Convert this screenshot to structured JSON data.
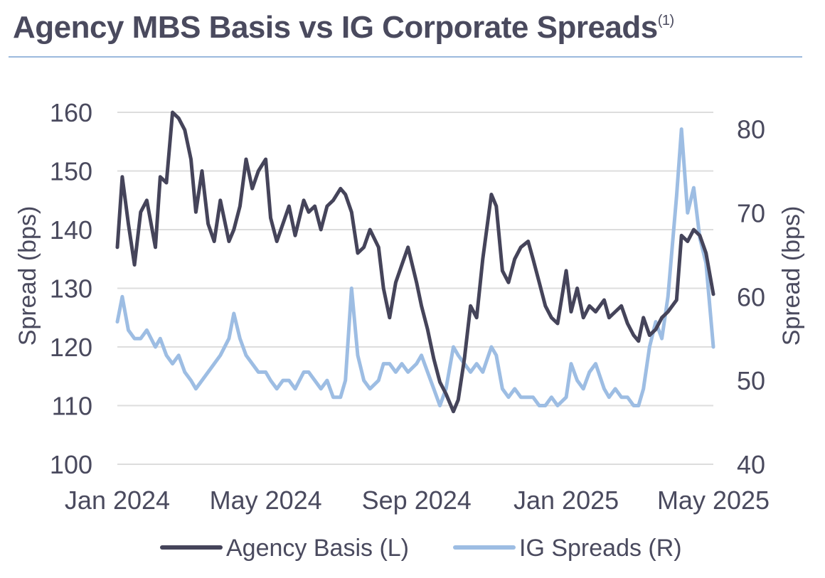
{
  "title": "Agency MBS Basis vs IG Corporate Spreads",
  "title_footnote": "(1)",
  "colors": {
    "basis": "#45445a",
    "ig": "#9dbde3",
    "grid": "#dddddd",
    "text": "#4a4a5e",
    "rule": "#9bb9dd"
  },
  "chart_data": {
    "type": "line",
    "x_axis": {
      "type": "date",
      "range": [
        "2024-01-01",
        "2025-05-01"
      ],
      "ticks": [
        "2024-01-01",
        "2024-05-01",
        "2024-09-01",
        "2025-01-01",
        "2025-05-01"
      ],
      "tick_labels": [
        "Jan 2024",
        "May 2024",
        "Sep 2024",
        "Jan 2025",
        "May 2025"
      ]
    },
    "y_left": {
      "label": "Spread (bps)",
      "range": [
        100,
        160
      ],
      "ticks": [
        100,
        110,
        120,
        130,
        140,
        150,
        160
      ]
    },
    "y_right": {
      "label": "Spread (bps)",
      "range": [
        40,
        82
      ],
      "ticks": [
        40,
        50,
        60,
        70,
        80
      ]
    },
    "grid": true,
    "legend_position": "bottom",
    "series": [
      {
        "name": "Agency Basis (L)",
        "axis": "left",
        "x": [
          "2024-01-01",
          "2024-01-05",
          "2024-01-10",
          "2024-01-15",
          "2024-01-20",
          "2024-01-25",
          "2024-02-01",
          "2024-02-05",
          "2024-02-10",
          "2024-02-15",
          "2024-02-20",
          "2024-02-25",
          "2024-03-01",
          "2024-03-05",
          "2024-03-10",
          "2024-03-15",
          "2024-03-20",
          "2024-03-25",
          "2024-04-01",
          "2024-04-05",
          "2024-04-10",
          "2024-04-15",
          "2024-04-20",
          "2024-04-25",
          "2024-05-01",
          "2024-05-05",
          "2024-05-10",
          "2024-05-15",
          "2024-05-20",
          "2024-05-25",
          "2024-06-01",
          "2024-06-05",
          "2024-06-10",
          "2024-06-15",
          "2024-06-20",
          "2024-06-25",
          "2024-07-01",
          "2024-07-05",
          "2024-07-10",
          "2024-07-15",
          "2024-07-20",
          "2024-07-25",
          "2024-08-01",
          "2024-08-05",
          "2024-08-10",
          "2024-08-15",
          "2024-08-20",
          "2024-08-25",
          "2024-09-01",
          "2024-09-05",
          "2024-09-10",
          "2024-09-15",
          "2024-09-20",
          "2024-09-25",
          "2024-10-01",
          "2024-10-05",
          "2024-10-10",
          "2024-10-15",
          "2024-10-20",
          "2024-10-25",
          "2024-11-01",
          "2024-11-05",
          "2024-11-10",
          "2024-11-15",
          "2024-11-20",
          "2024-11-25",
          "2024-12-01",
          "2024-12-05",
          "2024-12-10",
          "2024-12-15",
          "2024-12-20",
          "2024-12-25",
          "2025-01-01",
          "2025-01-05",
          "2025-01-10",
          "2025-01-15",
          "2025-01-20",
          "2025-01-25",
          "2025-02-01",
          "2025-02-05",
          "2025-02-10",
          "2025-02-15",
          "2025-02-20",
          "2025-02-25",
          "2025-03-01",
          "2025-03-05",
          "2025-03-10",
          "2025-03-15",
          "2025-03-20",
          "2025-03-25",
          "2025-04-01",
          "2025-04-05",
          "2025-04-10",
          "2025-04-15",
          "2025-04-20",
          "2025-04-25",
          "2025-05-01"
        ],
        "y": [
          137,
          149,
          141,
          134,
          143,
          145,
          137,
          149,
          148,
          160,
          159,
          157,
          152,
          143,
          150,
          141,
          138,
          145,
          138,
          140,
          144,
          152,
          147,
          150,
          152,
          142,
          138,
          141,
          144,
          139,
          145,
          143,
          144,
          140,
          144,
          145,
          147,
          146,
          143,
          136,
          137,
          140,
          137,
          130,
          125,
          131,
          134,
          137,
          131,
          127,
          123,
          118,
          114,
          112,
          109,
          111,
          118,
          127,
          125,
          135,
          146,
          144,
          133,
          131,
          135,
          137,
          138,
          135,
          131,
          127,
          125,
          124,
          133,
          126,
          130,
          125,
          127,
          126,
          128,
          125,
          126,
          127,
          124,
          122,
          121,
          125,
          122,
          123,
          125,
          126,
          128,
          139,
          138,
          140,
          139,
          136,
          129
        ],
        "values": [
          137,
          149,
          141,
          134,
          143,
          145,
          137,
          149,
          148,
          160,
          159,
          157,
          152,
          143,
          150,
          141,
          138,
          145,
          138,
          140,
          144,
          152,
          147,
          150,
          152,
          142,
          138,
          141,
          144,
          139,
          145,
          143,
          144,
          140,
          144,
          145,
          147,
          146,
          143,
          136,
          137,
          140,
          137,
          130,
          125,
          131,
          134,
          137,
          131,
          127,
          123,
          118,
          114,
          112,
          109,
          111,
          118,
          127,
          125,
          135,
          146,
          144,
          133,
          131,
          135,
          137,
          138,
          135,
          131,
          127,
          125,
          124,
          133,
          126,
          130,
          125,
          127,
          126,
          128,
          125,
          126,
          127,
          124,
          122,
          121,
          125,
          122,
          123,
          125,
          126,
          128,
          139,
          138,
          140,
          139,
          136,
          129
        ]
      },
      {
        "name": "IG Spreads (R)",
        "axis": "right",
        "x": [
          "2024-01-01",
          "2024-01-05",
          "2024-01-10",
          "2024-01-15",
          "2024-01-20",
          "2024-01-25",
          "2024-02-01",
          "2024-02-05",
          "2024-02-10",
          "2024-02-15",
          "2024-02-20",
          "2024-02-25",
          "2024-03-01",
          "2024-03-05",
          "2024-03-10",
          "2024-03-15",
          "2024-03-20",
          "2024-03-25",
          "2024-04-01",
          "2024-04-05",
          "2024-04-10",
          "2024-04-15",
          "2024-04-20",
          "2024-04-25",
          "2024-05-01",
          "2024-05-05",
          "2024-05-10",
          "2024-05-15",
          "2024-05-20",
          "2024-05-25",
          "2024-06-01",
          "2024-06-05",
          "2024-06-10",
          "2024-06-15",
          "2024-06-20",
          "2024-06-25",
          "2024-07-01",
          "2024-07-05",
          "2024-07-10",
          "2024-07-15",
          "2024-07-20",
          "2024-07-25",
          "2024-08-01",
          "2024-08-05",
          "2024-08-10",
          "2024-08-15",
          "2024-08-20",
          "2024-08-25",
          "2024-09-01",
          "2024-09-05",
          "2024-09-10",
          "2024-09-15",
          "2024-09-20",
          "2024-09-25",
          "2024-10-01",
          "2024-10-05",
          "2024-10-10",
          "2024-10-15",
          "2024-10-20",
          "2024-10-25",
          "2024-11-01",
          "2024-11-05",
          "2024-11-10",
          "2024-11-15",
          "2024-11-20",
          "2024-11-25",
          "2024-12-01",
          "2024-12-05",
          "2024-12-10",
          "2024-12-15",
          "2024-12-20",
          "2024-12-25",
          "2025-01-01",
          "2025-01-05",
          "2025-01-10",
          "2025-01-15",
          "2025-01-20",
          "2025-01-25",
          "2025-02-01",
          "2025-02-05",
          "2025-02-10",
          "2025-02-15",
          "2025-02-20",
          "2025-02-25",
          "2025-03-01",
          "2025-03-05",
          "2025-03-10",
          "2025-03-15",
          "2025-03-20",
          "2025-03-25",
          "2025-04-01",
          "2025-04-05",
          "2025-04-10",
          "2025-04-15",
          "2025-04-20",
          "2025-04-25",
          "2025-05-01"
        ],
        "y": [
          57,
          60,
          56,
          55,
          55,
          56,
          54,
          55,
          53,
          52,
          53,
          51,
          50,
          49,
          50,
          51,
          52,
          53,
          55,
          58,
          55,
          53,
          52,
          51,
          51,
          50,
          49,
          50,
          50,
          49,
          51,
          51,
          50,
          49,
          50,
          48,
          48,
          50,
          61,
          53,
          50,
          49,
          50,
          52,
          52,
          51,
          52,
          51,
          52,
          53,
          51,
          49,
          47,
          49,
          54,
          53,
          52,
          51,
          52,
          51,
          54,
          53,
          49,
          48,
          49,
          48,
          48,
          48,
          47,
          47,
          48,
          47,
          48,
          52,
          50,
          49,
          51,
          52,
          49,
          48,
          49,
          48,
          48,
          47,
          47,
          49,
          54,
          57,
          55,
          60,
          72,
          80,
          70,
          73,
          67,
          64,
          54
        ],
        "values": [
          57,
          60,
          56,
          55,
          55,
          56,
          54,
          55,
          53,
          52,
          53,
          51,
          50,
          49,
          50,
          51,
          52,
          53,
          55,
          58,
          55,
          53,
          52,
          51,
          51,
          50,
          49,
          50,
          50,
          49,
          51,
          51,
          50,
          49,
          50,
          48,
          48,
          50,
          61,
          53,
          50,
          49,
          50,
          52,
          52,
          51,
          52,
          51,
          52,
          53,
          51,
          49,
          47,
          49,
          54,
          53,
          52,
          51,
          52,
          51,
          54,
          53,
          49,
          48,
          49,
          48,
          48,
          48,
          47,
          47,
          48,
          47,
          48,
          52,
          50,
          49,
          51,
          52,
          49,
          48,
          49,
          48,
          48,
          47,
          47,
          49,
          54,
          57,
          55,
          60,
          72,
          80,
          70,
          73,
          67,
          64,
          54
        ]
      }
    ]
  }
}
